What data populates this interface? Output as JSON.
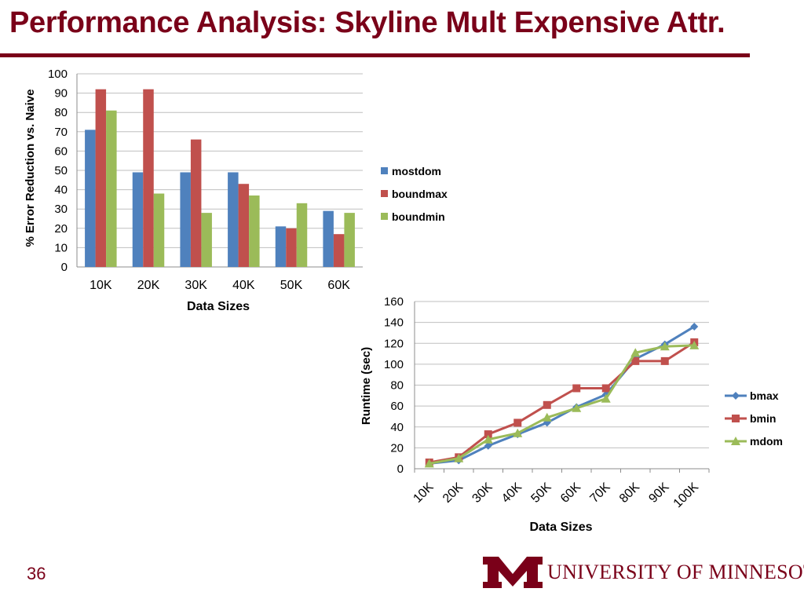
{
  "slide": {
    "title": "Performance Analysis: Skyline Mult Expensive Attr.",
    "page_number": "36",
    "footer_brand": "UNIVERSITY OF MINNESOTA",
    "accent_color": "#7a0019"
  },
  "chart_data": [
    {
      "type": "bar",
      "categories": [
        "10K",
        "20K",
        "30K",
        "40K",
        "50K",
        "60K"
      ],
      "series": [
        {
          "name": "mostdom",
          "color": "#4f81bd",
          "values": [
            71,
            49,
            49,
            49,
            21,
            29
          ]
        },
        {
          "name": "boundmax",
          "color": "#c0504d",
          "values": [
            92,
            92,
            66,
            43,
            20,
            17
          ]
        },
        {
          "name": "boundmin",
          "color": "#9bbb59",
          "values": [
            81,
            38,
            28,
            37,
            33,
            28
          ]
        }
      ],
      "xlabel": "Data Sizes",
      "ylabel": "% Error Reduction vs. Naive",
      "ylim": [
        0,
        100
      ],
      "yticks": [
        0,
        10,
        20,
        30,
        40,
        50,
        60,
        70,
        80,
        90,
        100
      ],
      "grid": true,
      "legend": "right"
    },
    {
      "type": "line",
      "categories": [
        "10K",
        "20K",
        "30K",
        "40K",
        "50K",
        "60K",
        "70K",
        "80K",
        "90K",
        "100K"
      ],
      "series": [
        {
          "name": "bmax",
          "color": "#4f81bd",
          "marker": "diamond",
          "values": [
            5,
            8,
            22,
            33,
            44,
            59,
            71,
            105,
            119,
            136
          ]
        },
        {
          "name": "bmin",
          "color": "#c0504d",
          "marker": "square",
          "values": [
            6,
            11,
            33,
            44,
            61,
            77,
            77,
            103,
            103,
            121
          ]
        },
        {
          "name": "mdom",
          "color": "#9bbb59",
          "marker": "triangle",
          "values": [
            5,
            10,
            28,
            34,
            49,
            58,
            67,
            111,
            117,
            118
          ]
        }
      ],
      "xlabel": "Data Sizes",
      "ylabel": "Runtime (sec)",
      "ylim": [
        0,
        160
      ],
      "yticks": [
        0,
        20,
        40,
        60,
        80,
        100,
        120,
        140,
        160
      ],
      "grid": true,
      "legend": "right"
    }
  ]
}
